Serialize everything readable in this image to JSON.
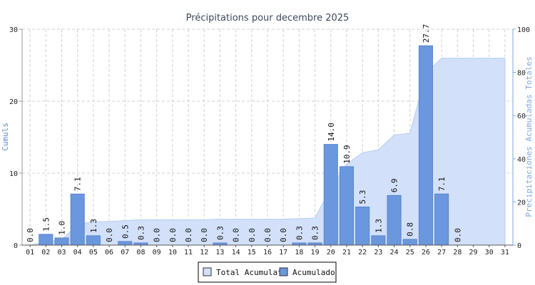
{
  "chart_data": {
    "type": "bar",
    "title": "Précipitations pour decembre 2025",
    "ylabel": "Cumuls",
    "y2label": "Precipitaciones Acumuladas Totales",
    "ylim": [
      0,
      30
    ],
    "y2lim": [
      0,
      100
    ],
    "yticks": [
      0,
      10,
      20,
      30
    ],
    "y2ticks": [
      0,
      20,
      40,
      60,
      80,
      100
    ],
    "grid": true,
    "legend_position": "bottom-center",
    "colors": {
      "bar": "#6a97dd",
      "bar_stroke": "#5a86cc",
      "area": "#d2e0f9",
      "area_stroke": "#b7cdf2",
      "left_axis_label": "#5b8ed6",
      "right_axis": "#7ea7e0",
      "grid": "#d0d0d0",
      "title": "#3a4a5e"
    },
    "categories": [
      "01",
      "02",
      "03",
      "04",
      "05",
      "06",
      "07",
      "08",
      "09",
      "10",
      "11",
      "12",
      "13",
      "14",
      "15",
      "16",
      "17",
      "18",
      "19",
      "20",
      "21",
      "22",
      "23",
      "24",
      "25",
      "26",
      "27",
      "28",
      "29",
      "30",
      "31"
    ],
    "series": [
      {
        "name": "Acumulado",
        "axis": "left",
        "kind": "bar",
        "values": [
          0.0,
          1.5,
          1.0,
          7.1,
          1.3,
          0.0,
          0.5,
          0.3,
          0.0,
          0.0,
          0.0,
          0.0,
          0.3,
          0.0,
          0.0,
          0.0,
          0.0,
          0.3,
          0.3,
          14.0,
          10.9,
          5.3,
          1.3,
          6.9,
          0.8,
          27.7,
          7.1,
          0.0,
          null,
          null,
          null
        ],
        "labels": [
          "0.0",
          "1.5",
          "1.0",
          "7.1",
          "1.3",
          "0.0",
          "0.5",
          "0.3",
          "0.0",
          "0.0",
          "0.0",
          "0.0",
          "0.3",
          "0.0",
          "0.0",
          "0.0",
          "0.0",
          "0.3",
          "0.3",
          "14.0",
          "10.9",
          "5.3",
          "1.3",
          "6.9",
          "0.8",
          "27.7",
          "7.1",
          "0.0",
          "",
          "",
          ""
        ]
      },
      {
        "name": "Total Acumulat",
        "axis": "right",
        "kind": "area",
        "values": [
          0.0,
          1.5,
          2.5,
          9.6,
          10.9,
          10.9,
          11.4,
          11.7,
          11.7,
          11.7,
          11.7,
          11.7,
          12.0,
          12.0,
          12.0,
          12.0,
          12.0,
          12.3,
          12.6,
          26.6,
          37.5,
          42.8,
          44.1,
          51.0,
          51.8,
          79.5,
          86.6,
          86.6,
          86.6,
          86.6,
          86.6
        ]
      }
    ]
  }
}
